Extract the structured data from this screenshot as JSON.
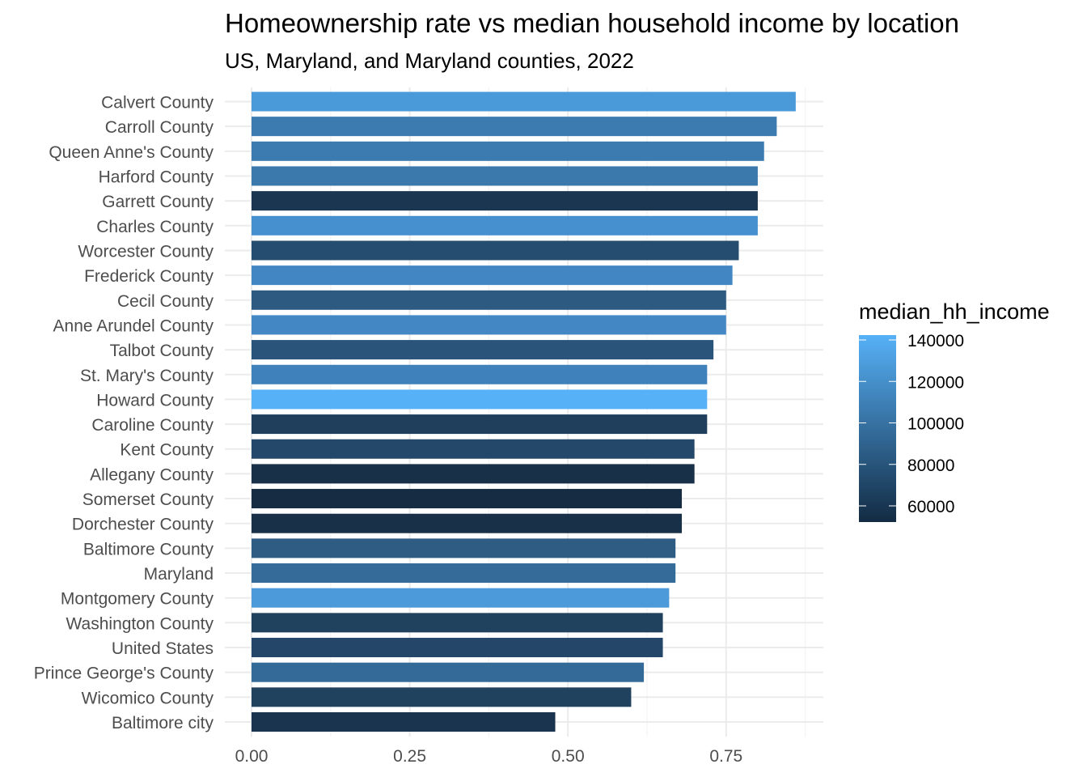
{
  "chart_data": {
    "type": "bar",
    "orientation": "horizontal",
    "title": "Homeownership rate vs median household income by location",
    "subtitle": "US, Maryland, and Maryland counties, 2022",
    "xlabel": "",
    "ylabel": "",
    "xlim": [
      0,
      0.9
    ],
    "x_ticks": [
      "0.00",
      "0.25",
      "0.50",
      "0.75"
    ],
    "grid": true,
    "legend": {
      "title": "median_hh_income",
      "position": "right",
      "ticks": [
        "140000",
        "120000",
        "100000",
        "80000",
        "60000"
      ],
      "low_color": "#132b43",
      "high_color": "#56b1f7"
    },
    "categories": [
      "Calvert County",
      "Carroll County",
      "Queen Anne's County",
      "Harford County",
      "Garrett County",
      "Charles County",
      "Worcester County",
      "Frederick County",
      "Cecil County",
      "Anne Arundel County",
      "Talbot County",
      "St. Mary's County",
      "Howard County",
      "Caroline County",
      "Kent County",
      "Allegany County",
      "Somerset County",
      "Dorchester County",
      "Baltimore County",
      "Maryland",
      "Montgomery County",
      "Washington County",
      "United States",
      "Prince George's County",
      "Wicomico County",
      "Baltimore city"
    ],
    "values": [
      0.86,
      0.83,
      0.81,
      0.8,
      0.8,
      0.8,
      0.77,
      0.76,
      0.75,
      0.75,
      0.73,
      0.72,
      0.72,
      0.72,
      0.7,
      0.7,
      0.68,
      0.68,
      0.67,
      0.67,
      0.66,
      0.65,
      0.65,
      0.62,
      0.6,
      0.48
    ],
    "fill_colors": [
      "#4a9ad9",
      "#3b7bb0",
      "#3b7bb0",
      "#3b78ab",
      "#1b3650",
      "#4690d0",
      "#254d70",
      "#4287c3",
      "#2d5a80",
      "#4388c5",
      "#2a5479",
      "#3f82bb",
      "#56b1f7",
      "#1f3f5c",
      "#24486a",
      "#183149",
      "#152c43",
      "#183149",
      "#2e5c83",
      "#356b98",
      "#4c9ad9",
      "#21425f",
      "#234669",
      "#336a98",
      "#21425f",
      "#1a3450"
    ]
  }
}
